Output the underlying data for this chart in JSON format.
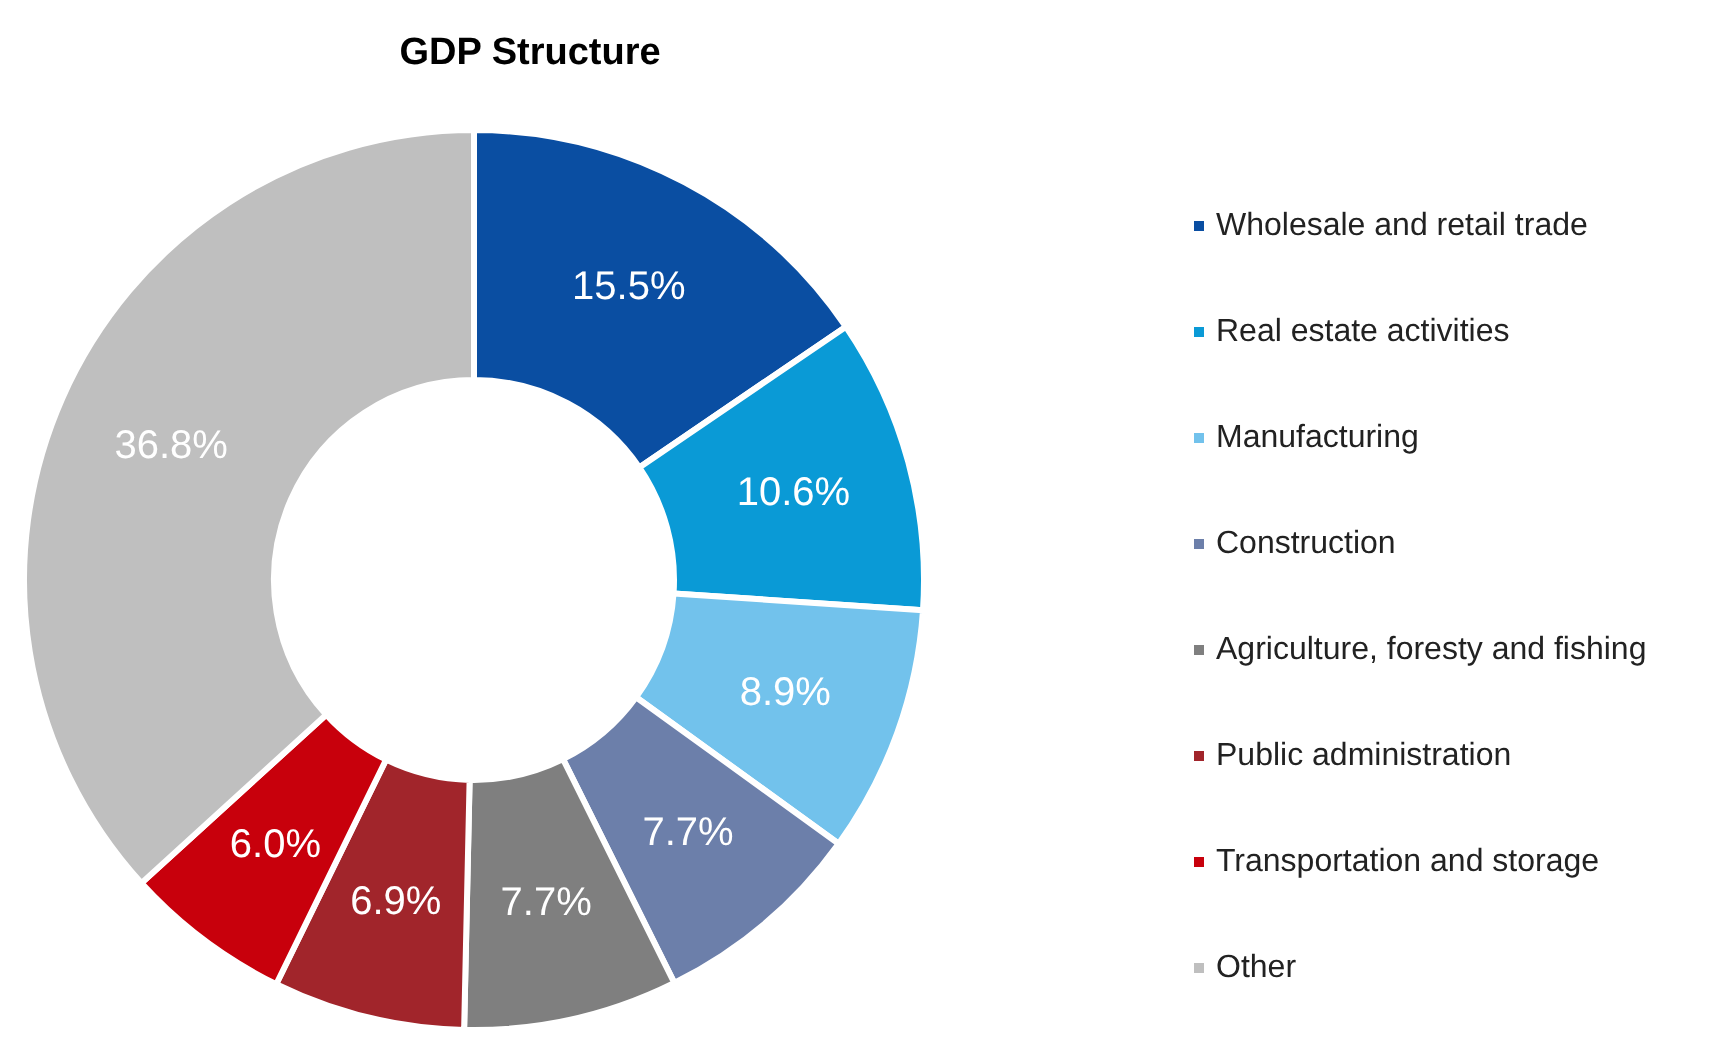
{
  "chart_data": {
    "type": "donut",
    "title": "GDP Structure",
    "categories": [
      "Wholesale and retail trade",
      "Real estate activities",
      "Manufacturing",
      "Construction",
      "Agriculture, foresty and fishing",
      "Public administration",
      "Transportation and storage",
      "Other"
    ],
    "values": [
      15.5,
      10.6,
      8.9,
      7.7,
      7.7,
      6.9,
      6.0,
      36.8
    ],
    "value_labels": [
      "15.5%",
      "10.6%",
      "8.9%",
      "7.7%",
      "7.7%",
      "6.9%",
      "6.0%",
      "36.8%"
    ],
    "colors": [
      "#0a4ea2",
      "#0a9ad6",
      "#72c2ec",
      "#6c7faa",
      "#7f7f7f",
      "#a1252b",
      "#c8000c",
      "#bfbfbf"
    ],
    "legend": "right"
  }
}
